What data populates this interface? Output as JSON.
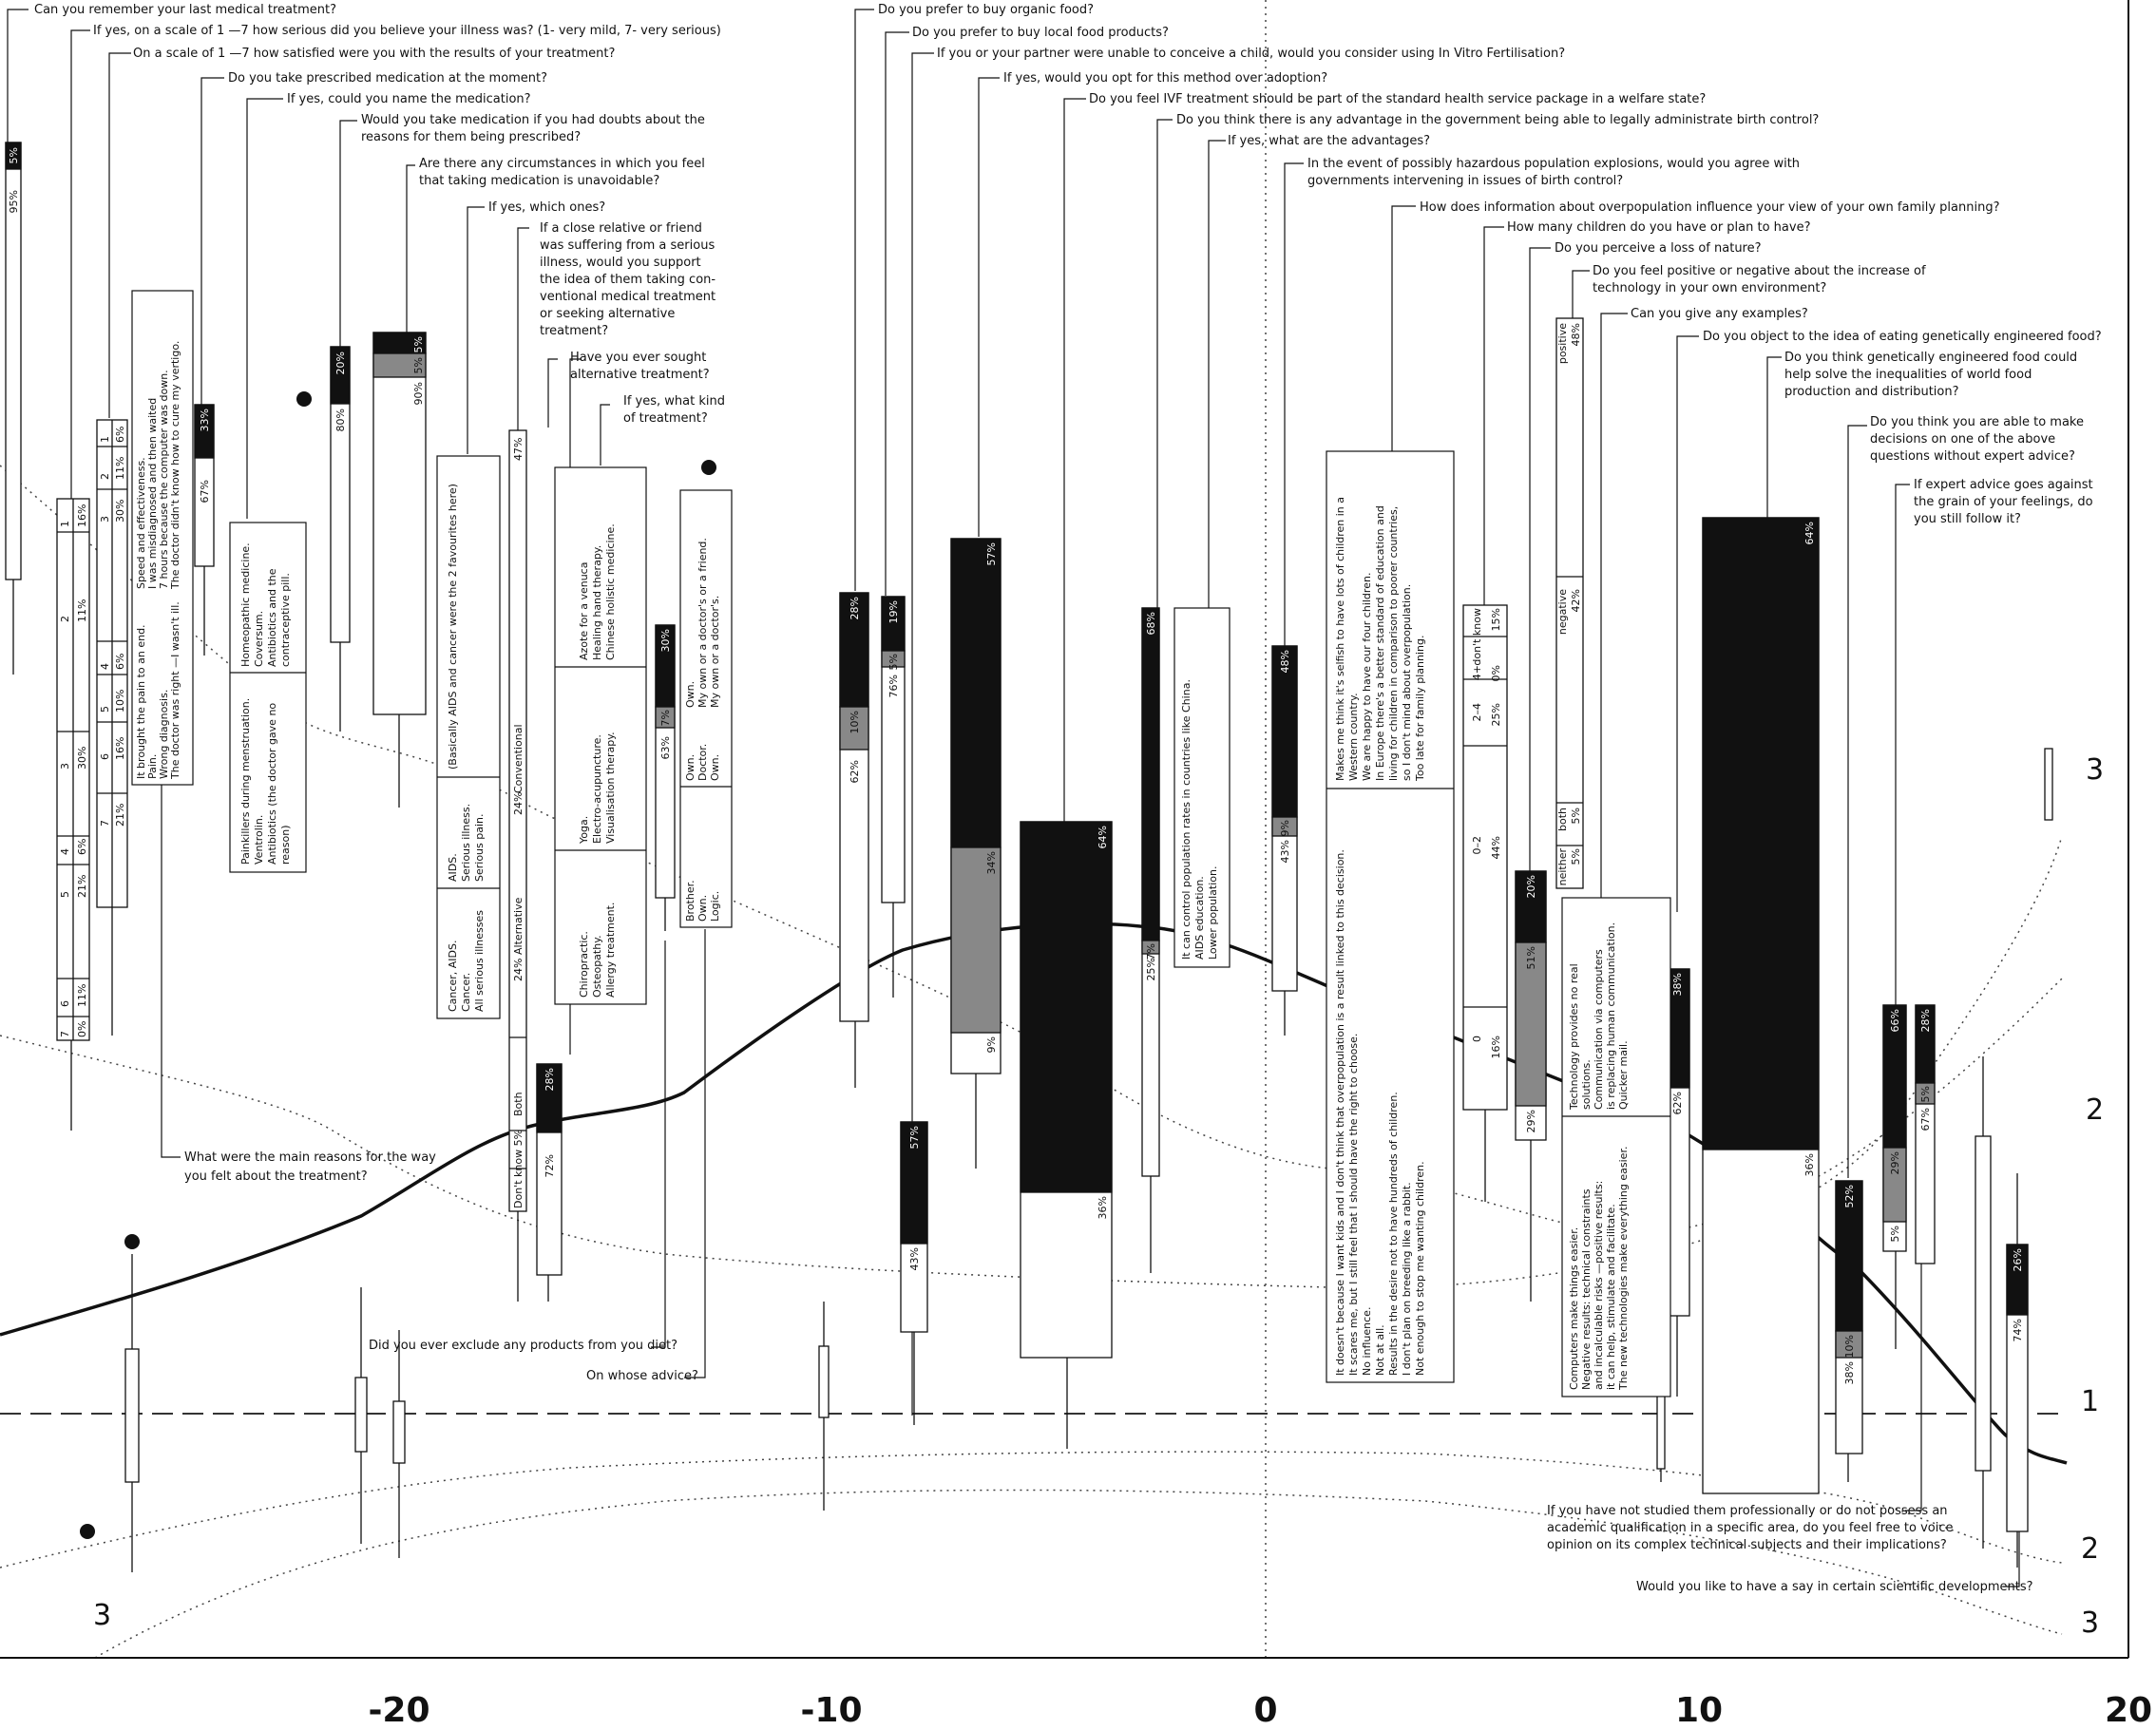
{
  "axis": {
    "ticks": [
      {
        "value": -20,
        "label": "-20"
      },
      {
        "value": -10,
        "label": "-10"
      },
      {
        "value": 0,
        "label": "0"
      },
      {
        "value": 10,
        "label": "10"
      },
      {
        "value": 20,
        "label": "20"
      }
    ],
    "range": [
      -29,
      20
    ]
  },
  "levels": [
    {
      "label": "3",
      "side": "right-upper"
    },
    {
      "label": "2",
      "side": "right-upper"
    },
    {
      "label": "1",
      "side": "right"
    },
    {
      "label": "2",
      "side": "right-lower"
    },
    {
      "label": "3",
      "side": "right-lower"
    },
    {
      "label": "3",
      "side": "left-lower"
    }
  ],
  "questions": [
    "Can you remember your last medical treatment?",
    "If yes, on a scale of 1 —7 how serious did you believe your illness was? (1- very mild, 7- very serious)",
    "On a scale of 1 —7 how satisfied were you with the results of your treatment?",
    "Do you take prescribed medication at the moment?",
    "If yes, could you name the medication?",
    "Would you take medication if you had doubts about the",
    "reasons for them being prescribed?",
    "Are there any circumstances in which you feel",
    "that taking medication is unavoidable?",
    "If yes, which ones?",
    "If a close relative or friend",
    "was suffering from a serious",
    "illness, would you support",
    "the idea of them taking con-",
    "ventional medical treatment",
    "or seeking alternative",
    "treatment?",
    "Have you ever sought",
    "alternative treatment?",
    "If yes, what kind",
    "of treatment?",
    "Do you prefer to buy organic food?",
    "Do you prefer to buy local food products?",
    "If you or your partner were unable to conceive a child, would you consider using In Vitro Fertilisation?",
    "If yes, would you opt for this method over adoption?",
    "Do you feel IVF treatment should be part of the standard health service package in a welfare state?",
    "Do you think there is any advantage in the government being able to legally administrate birth control?",
    "If yes, what are the advantages?",
    "In the event of possibly hazardous population explosions, would you agree with",
    "governments intervening in issues of birth control?",
    "How does information about overpopulation influence your view of your own family planning?",
    "How many children do you have or plan to have?",
    "Do you perceive a loss of nature?",
    "Do you feel positive or negative about the increase of",
    "technology in your own environment?",
    "Can you give any examples?",
    "Do you object to the idea of eating genetically engineered food?",
    "Do you think genetically engineered food could",
    "help solve the inequalities of world food",
    "production and distribution?",
    "Do you think you are able to make",
    "decisions on one of the above",
    "questions without expert advice?",
    "If expert advice goes against",
    "the grain of your feelings, do",
    "you still follow it?",
    "What were the main reasons for the way",
    "you felt about the treatment?",
    "Did you ever exclude any products from you diet?",
    "On whose advice?",
    "If you have not studied them professionally or do not possess an",
    "academic qualification in a specific area, do you feel free to voice",
    "opinion on its complex technical subjects and their implications?",
    "Would you like to have a say in certain scientific developments?"
  ],
  "answers": [
    "95%",
    "5%",
    "1",
    "16%",
    "2",
    "11%",
    "3",
    "30%",
    "4",
    "6%",
    "5",
    "21%",
    "6",
    "11%",
    "7",
    "0%",
    "1",
    "6%",
    "2",
    "11%",
    "3",
    "30%",
    "4",
    "6%",
    "5",
    "10%",
    "6",
    "16%",
    "7",
    "21%",
    "67%",
    "33%",
    "80%",
    "20%",
    "90%",
    "5%",
    "5%",
    "Conventional",
    "47%",
    "Alternative",
    "24%",
    "Both",
    "24%",
    "Don't know 5%",
    "72%",
    "28%",
    "63%",
    "7%",
    "30%",
    "62%",
    "10%",
    "28%",
    "76%",
    "5%",
    "19%",
    "43%",
    "57%",
    "9%",
    "34%",
    "57%",
    "36%",
    "64%",
    "25%",
    "7%",
    "68%",
    "43%",
    "9%",
    "48%",
    "don't know",
    "15%",
    "4+",
    "0%",
    "2–4",
    "25%",
    "0–2",
    "44%",
    "0",
    "16%",
    "29%",
    "51%",
    "20%",
    "positive",
    "48%",
    "negative",
    "42%",
    "both",
    "5%",
    "neither",
    "5%",
    "62%",
    "38%",
    "36%",
    "64%",
    "38%",
    "10%",
    "52%",
    "5%",
    "29%",
    "66%",
    "67%",
    "5%",
    "28%",
    "74%",
    "26%"
  ],
  "notes": [
    "Speed and effectiveness.",
    "I was misdiagnosed and then waited",
    "7 hours because the computer was down.",
    "The doctor didn't know how to cure my vertigo.",
    "It brought the pain to an end.",
    "Pain.",
    "Wrong diagnosis.",
    "The doctor was right —I wasn't ill.",
    "Homeopathic medicine.",
    "Coversum.",
    "Antibiotics and the",
    "contraceptive pill.",
    "Painkillers during menstruation.",
    "Ventrolin.",
    "Antibiotics (the doctor gave no",
    "reason)",
    "(Basically AIDS and cancer were the 2 favourites here)",
    "AIDS.",
    "Serious illness.",
    "Serious pain.",
    "Cancer, AIDS.",
    "Cancer.",
    "All serious illnesses",
    "Azote for a venuca",
    "Healing hand therapy.",
    "Chinese holistic medicine.",
    "Yoga.",
    "Electro-acupuncture.",
    "Visualisation therapy.",
    "Chiropractic.",
    "Osteopathy.",
    "Allergy treatment.",
    "Own.",
    "My own or a doctor's or a friend.",
    "My own or a doctor's.",
    "Own.",
    "Doctor.",
    "Own.",
    "Brother.",
    "Own.",
    "Logic.",
    "It can control population rates in countries like China.",
    "AIDS education.",
    "Lower population.",
    "Makes me think it's selfish to have lots of children in a",
    "Western country.",
    "We are happy to have our four children.",
    "In Europe there's a better standard of education and",
    "living for children in comparison to poorer countries,",
    "so I don't mind about overpopulation.",
    "Too late for family planning.",
    "It doesn't because I want kids and I don't think that overpopulation is a result linked to this decision.",
    "It scares me, but I still feel that I should have the right to choose.",
    "No influence.",
    "Not at all.",
    "Results in the desire not to have hundreds of children.",
    "I don't plan on breeding like a rabbit.",
    "Not enough to stop me wanting children.",
    "Technology provides no real",
    "solutions.",
    "Communication via computers",
    "is replacing human communication.",
    "Quicker mail.",
    "Computers make things easier.",
    "Negative results: technical constraints",
    "and incalculable risks —positive results:",
    "it can help, stimulate and facilitate.",
    "The new technologies make everything easier."
  ]
}
